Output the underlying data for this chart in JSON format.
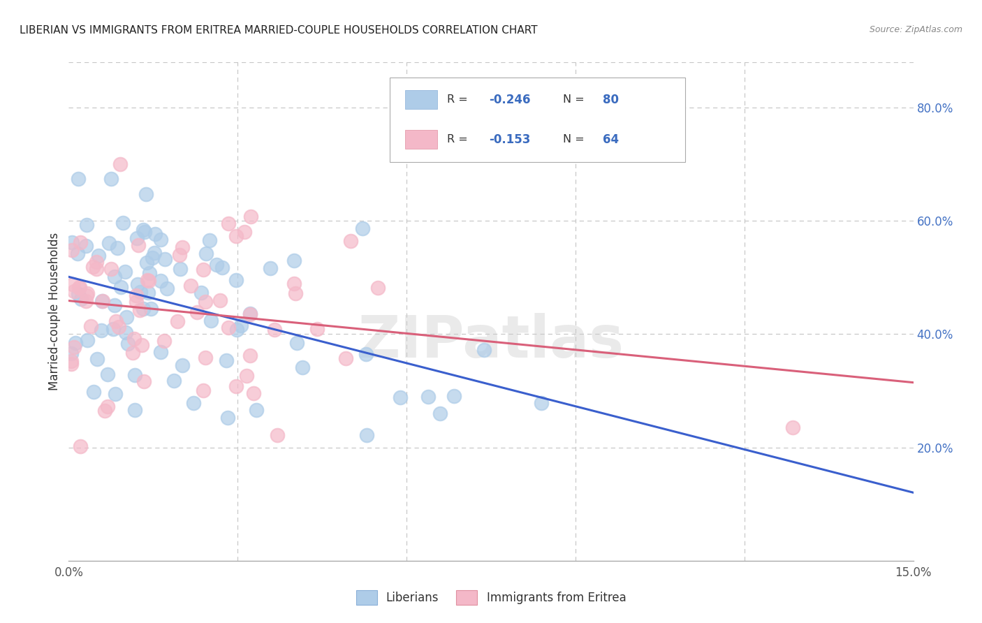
{
  "title": "LIBERIAN VS IMMIGRANTS FROM ERITREA MARRIED-COUPLE HOUSEHOLDS CORRELATION CHART",
  "source": "Source: ZipAtlas.com",
  "ylabel": "Married-couple Households",
  "xlim": [
    0.0,
    0.15
  ],
  "ylim": [
    0.0,
    0.88
  ],
  "blue_color": "#aecce8",
  "pink_color": "#f4b8c8",
  "blue_line_color": "#3a5fcd",
  "pink_line_color": "#d9607a",
  "blue_text_color": "#3a6bbf",
  "watermark": "ZIPatlas",
  "liberian_R": -0.246,
  "liberian_N": 80,
  "eritrea_R": -0.153,
  "eritrea_N": 64,
  "grid_color": "#c8c8c8",
  "title_color": "#222222",
  "source_color": "#888888",
  "right_tick_color": "#4472c4"
}
